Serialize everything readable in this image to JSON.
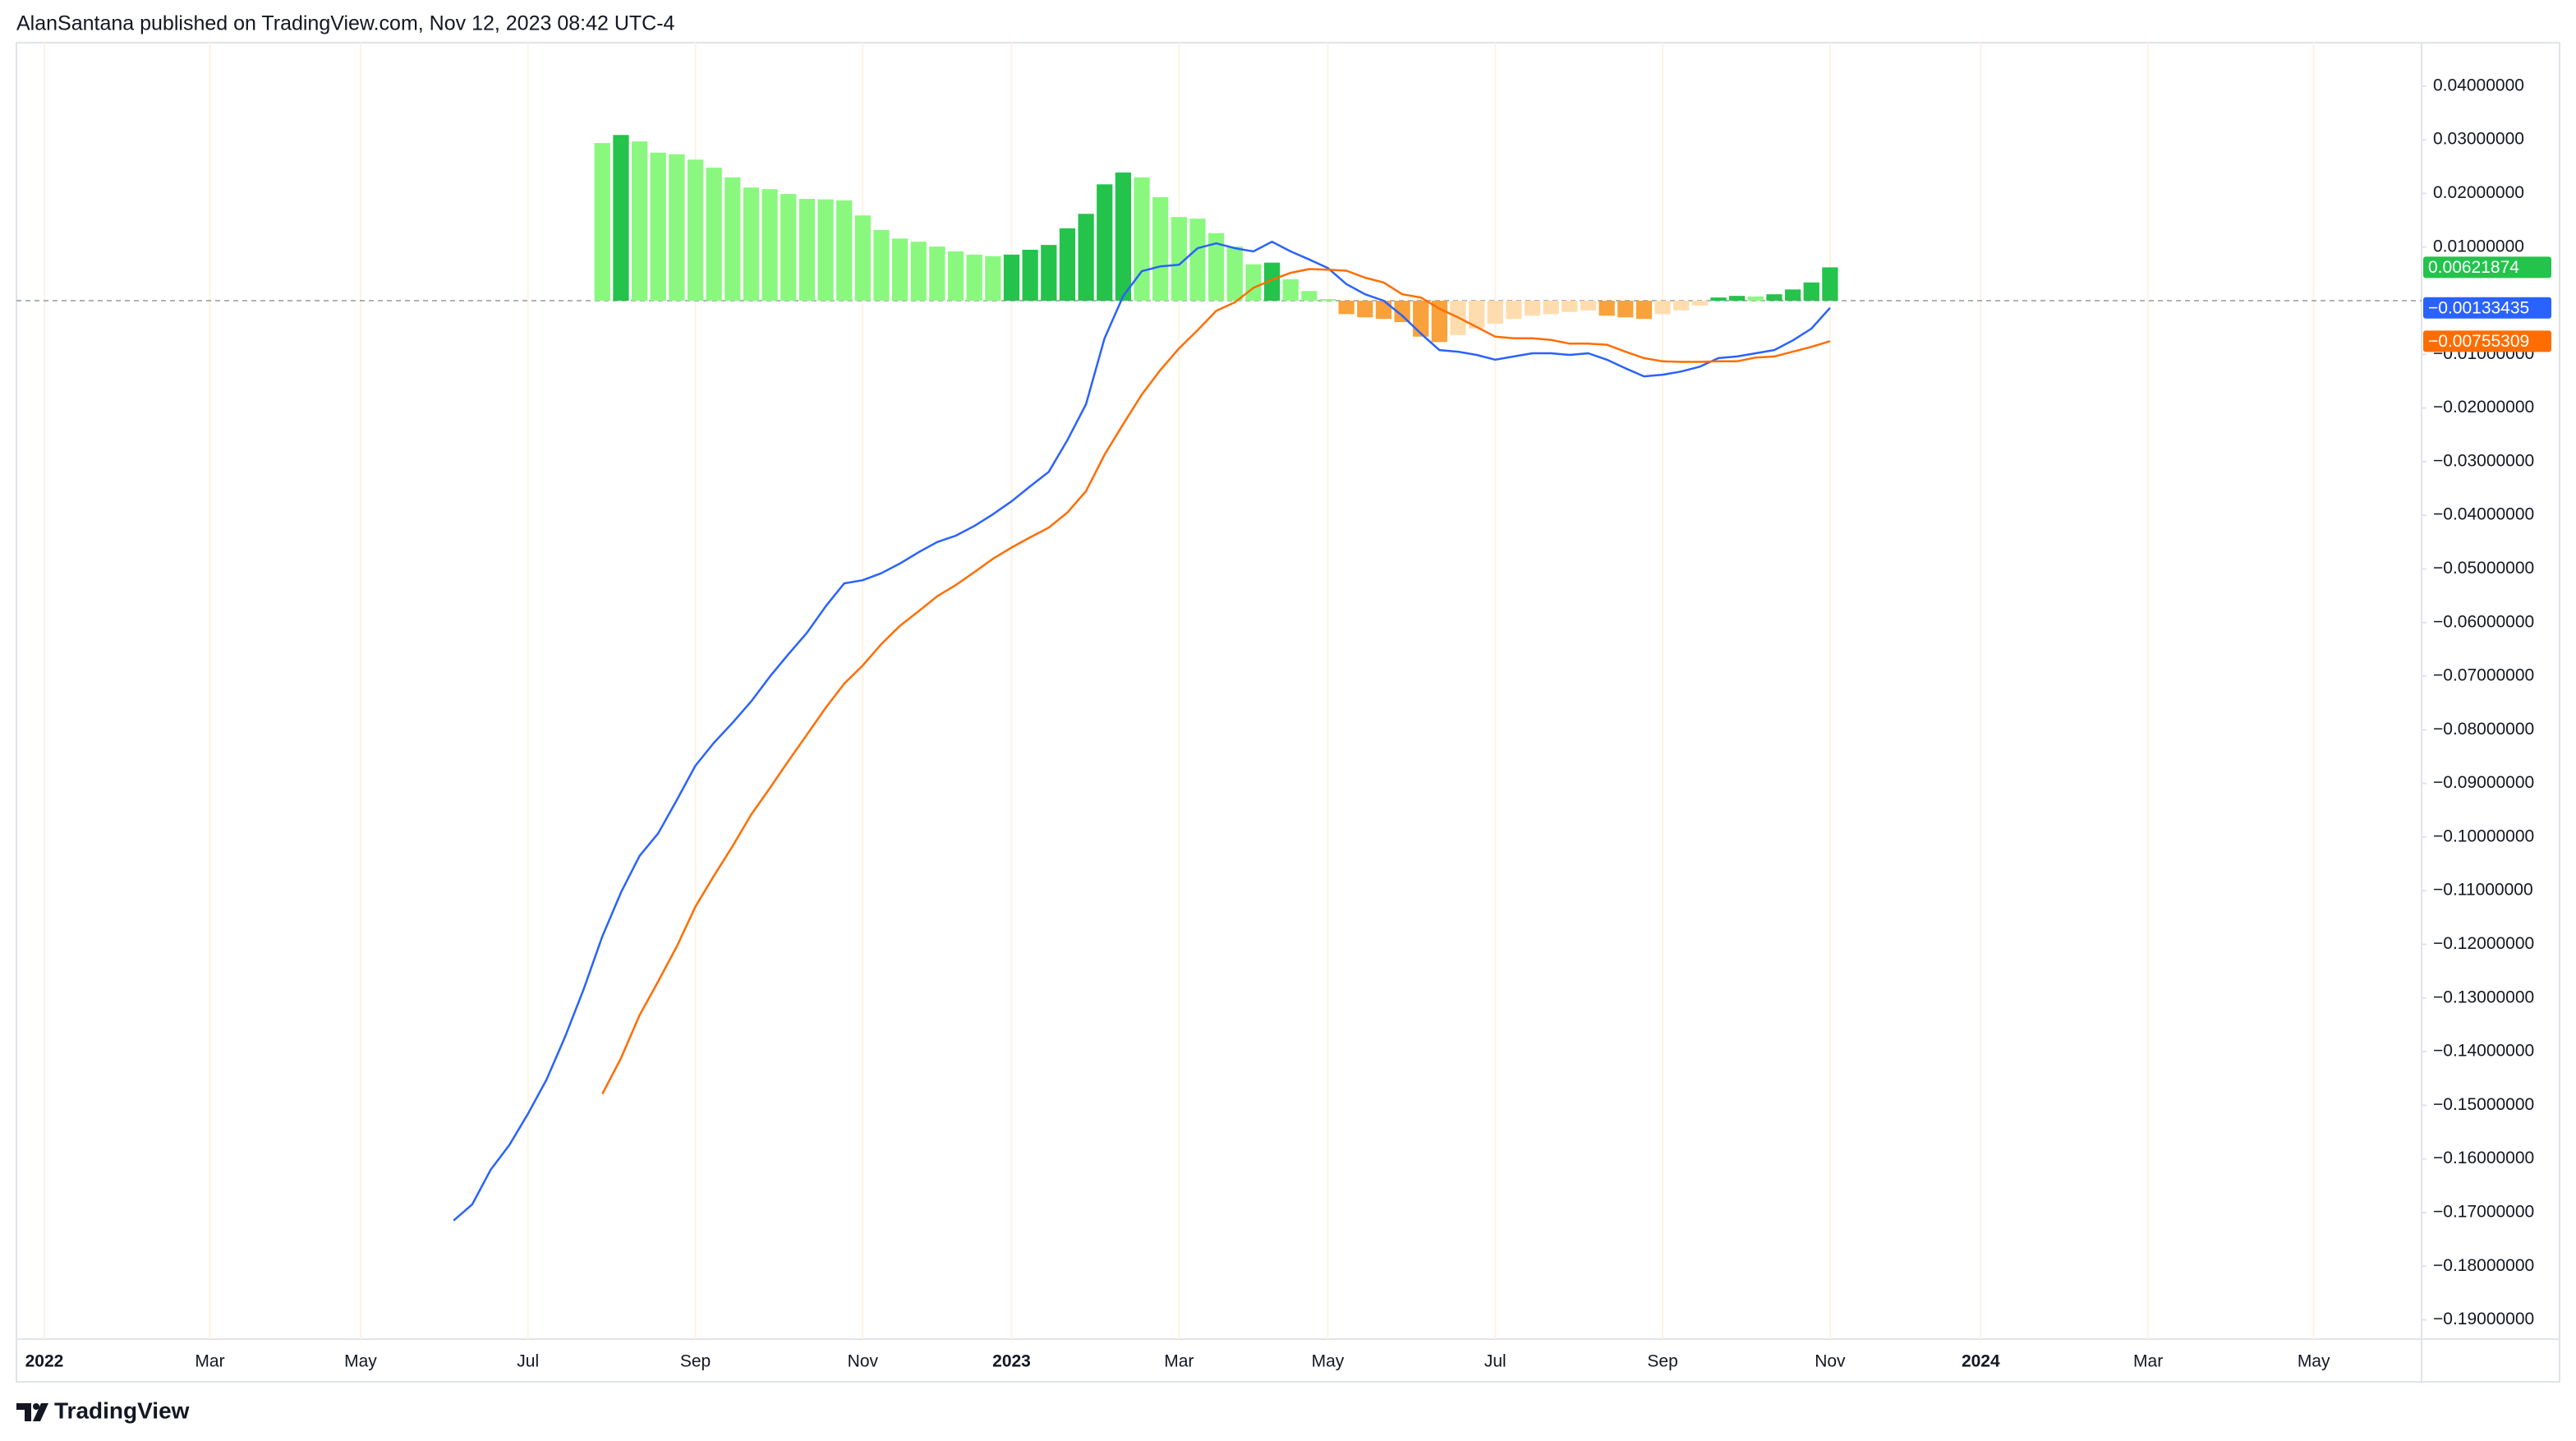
{
  "header": "AlanSantana published on TradingView.com, Nov 12, 2023 08:42 UTC-4",
  "brand": "TradingView",
  "chart_data": {
    "type": "line",
    "x": [
      22,
      23,
      24,
      25,
      26,
      27,
      28,
      29,
      30,
      31,
      32,
      33,
      34,
      35,
      36,
      37,
      38,
      39,
      40,
      41,
      42,
      43,
      44,
      45,
      46,
      47,
      48,
      49,
      50,
      51,
      52,
      53,
      54,
      55,
      56,
      57,
      58,
      59,
      60,
      61,
      62,
      63,
      64,
      65,
      66,
      67,
      68,
      69,
      70,
      71,
      72,
      73,
      74,
      75,
      76,
      77,
      78,
      79,
      80,
      81,
      82,
      83,
      84,
      85,
      86,
      87,
      88,
      89,
      90,
      91,
      92,
      93,
      94,
      95,
      96
    ],
    "xlim": [
      -1.5,
      127.8
    ],
    "xticks": [
      {
        "value": 0,
        "label": "2022"
      },
      {
        "value": 8.9,
        "label": "Mar"
      },
      {
        "value": 17,
        "label": "May"
      },
      {
        "value": 26,
        "label": "Jul"
      },
      {
        "value": 35,
        "label": "Sep"
      },
      {
        "value": 44,
        "label": "Nov"
      },
      {
        "value": 52,
        "label": "2023"
      },
      {
        "value": 61,
        "label": "Mar"
      },
      {
        "value": 69,
        "label": "May"
      },
      {
        "value": 78,
        "label": "Jul"
      },
      {
        "value": 87,
        "label": "Sep"
      },
      {
        "value": 96,
        "label": "Nov"
      },
      {
        "value": 104.1,
        "label": "2024"
      },
      {
        "value": 113.1,
        "label": "Mar"
      },
      {
        "value": 122,
        "label": "May"
      }
    ],
    "ylim": [
      -0.1936,
      0.0481
    ],
    "yticks": [
      {
        "value": 0.04,
        "label": "0.04000000"
      },
      {
        "value": 0.03,
        "label": "0.03000000"
      },
      {
        "value": 0.02,
        "label": "0.02000000"
      },
      {
        "value": 0.01,
        "label": "0.01000000"
      },
      {
        "value": -0.01,
        "label": "−0.01000000"
      },
      {
        "value": -0.02,
        "label": "−0.02000000"
      },
      {
        "value": -0.03,
        "label": "−0.03000000"
      },
      {
        "value": -0.04,
        "label": "−0.04000000"
      },
      {
        "value": -0.05,
        "label": "−0.05000000"
      },
      {
        "value": -0.06,
        "label": "−0.06000000"
      },
      {
        "value": -0.07,
        "label": "−0.07000000"
      },
      {
        "value": -0.08,
        "label": "−0.08000000"
      },
      {
        "value": -0.09,
        "label": "−0.09000000"
      },
      {
        "value": -0.1,
        "label": "−0.10000000"
      },
      {
        "value": -0.11,
        "label": "−0.11000000"
      },
      {
        "value": -0.12,
        "label": "−0.12000000"
      },
      {
        "value": -0.13,
        "label": "−0.13000000"
      },
      {
        "value": -0.14,
        "label": "−0.14000000"
      },
      {
        "value": -0.15,
        "label": "−0.15000000"
      },
      {
        "value": -0.16,
        "label": "−0.16000000"
      },
      {
        "value": -0.17,
        "label": "−0.17000000"
      },
      {
        "value": -0.18,
        "label": "−0.18000000"
      },
      {
        "value": -0.19,
        "label": "−0.19000000"
      }
    ],
    "grid": "vertical",
    "series": [
      {
        "type": "bar",
        "colors": [
          "#23c34c",
          "#8af87f",
          "#f9a13a",
          "#ffdcae"
        ],
        "values": [
          null,
          null,
          null,
          null,
          null,
          null,
          null,
          null,
          0.0294,
          0.0309,
          0.0297,
          0.0276,
          0.0273,
          0.0263,
          0.0248,
          0.023,
          0.0211,
          0.0208,
          0.0199,
          0.019,
          0.0189,
          0.0187,
          0.0159,
          0.0132,
          0.0116,
          0.011,
          0.0101,
          0.0092,
          0.0086,
          0.0083,
          0.0086,
          0.0095,
          0.0104,
          0.0135,
          0.0162,
          0.0217,
          0.0239,
          0.023,
          0.0193,
          0.0156,
          0.0153,
          0.0126,
          0.0101,
          0.0068,
          0.0071,
          0.004,
          0.0018,
          0.0003,
          -0.0025,
          -0.0031,
          -0.0034,
          -0.004,
          -0.0067,
          -0.0077,
          -0.0064,
          -0.0052,
          -0.0043,
          -0.0034,
          -0.0028,
          -0.0025,
          -0.0021,
          -0.0018,
          -0.0028,
          -0.0031,
          -0.0034,
          -0.0025,
          -0.0018,
          -0.0009,
          0.0006,
          0.0009,
          0.0008,
          0.0012,
          0.0021,
          0.0034,
          0.00621874
        ]
      },
      {
        "type": "line",
        "color": "#2962ff",
        "last_value_label": "−0.00133435",
        "values": [
          -0.1715,
          -0.1685,
          -0.162,
          -0.1574,
          -0.1516,
          -0.1452,
          -0.1372,
          -0.1283,
          -0.1185,
          -0.1103,
          -0.1035,
          -0.0993,
          -0.0931,
          -0.0867,
          -0.0824,
          -0.0787,
          -0.0747,
          -0.0701,
          -0.0659,
          -0.0619,
          -0.057,
          -0.0527,
          -0.0521,
          -0.0508,
          -0.049,
          -0.0469,
          -0.045,
          -0.0438,
          -0.042,
          -0.0398,
          -0.0374,
          -0.0346,
          -0.0319,
          -0.026,
          -0.0193,
          -0.007,
          0.0009,
          0.0055,
          0.0064,
          0.0067,
          0.0098,
          0.0107,
          0.0098,
          0.0092,
          0.011,
          0.0092,
          0.0077,
          0.0061,
          0.0031,
          0.0012,
          0,
          -0.0028,
          -0.0061,
          -0.0092,
          -0.0095,
          -0.0101,
          -0.011,
          -0.0104,
          -0.0098,
          -0.0098,
          -0.0101,
          -0.0098,
          -0.011,
          -0.0126,
          -0.0141,
          -0.0138,
          -0.0132,
          -0.0123,
          -0.0107,
          -0.0104,
          -0.0098,
          -0.0092,
          -0.0074,
          -0.0052,
          -0.00133435
        ]
      },
      {
        "type": "line",
        "color": "#ff6d00",
        "last_value_label": "−0.00755309",
        "values": [
          null,
          null,
          null,
          null,
          null,
          null,
          null,
          null,
          -0.1479,
          -0.1412,
          -0.1332,
          -0.1269,
          -0.1204,
          -0.113,
          -0.1072,
          -0.1017,
          -0.0958,
          -0.0909,
          -0.0858,
          -0.0809,
          -0.0759,
          -0.0714,
          -0.068,
          -0.064,
          -0.0606,
          -0.0579,
          -0.0551,
          -0.053,
          -0.0506,
          -0.0481,
          -0.046,
          -0.0441,
          -0.0423,
          -0.0395,
          -0.0355,
          -0.0287,
          -0.023,
          -0.0175,
          -0.0129,
          -0.0089,
          -0.0055,
          -0.0019,
          -0.0003,
          0.0024,
          0.0039,
          0.0052,
          0.0059,
          0.0058,
          0.0056,
          0.0043,
          0.0034,
          0.0012,
          0.0006,
          -0.0015,
          -0.0031,
          -0.0049,
          -0.0067,
          -0.007,
          -0.007,
          -0.0073,
          -0.008,
          -0.008,
          -0.0082,
          -0.0095,
          -0.0107,
          -0.0113,
          -0.0114,
          -0.0114,
          -0.0113,
          -0.0113,
          -0.0106,
          -0.0104,
          -0.0095,
          -0.0086,
          -0.00755309
        ]
      }
    ]
  }
}
